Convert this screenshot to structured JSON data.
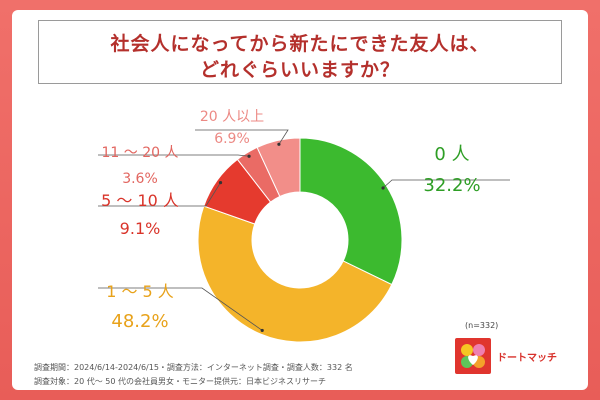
{
  "title": {
    "line1": "社会人になってから新たにできた友人は、",
    "line2": "どれぐらいいますか？"
  },
  "chart_data": {
    "type": "pie",
    "donut": true,
    "slices": [
      {
        "label": "0 人",
        "pct_label": "32.2%",
        "value": 32.2,
        "color": "#3cba2f",
        "label_color": "#2e9e25"
      },
      {
        "label": "1 ～ 5 人",
        "pct_label": "48.2%",
        "value": 48.2,
        "color": "#f4b42a",
        "label_color": "#e8a21a"
      },
      {
        "label": "5 ～ 10 人",
        "pct_label": "9.1%",
        "value": 9.1,
        "color": "#e53a2e",
        "label_color": "#d9342a"
      },
      {
        "label": "11 ～ 20 人",
        "pct_label": "3.6%",
        "value": 3.6,
        "color": "#ea6b65",
        "label_color": "#e26660"
      },
      {
        "label": "20 人以上",
        "pct_label": "6.9%",
        "value": 6.9,
        "color": "#f28e89",
        "label_color": "#ec8984"
      }
    ]
  },
  "sample_size": "(n=332)",
  "footnotes": {
    "line1": "調査期間：2024/6/14-2024/6/15・調査方法：インターネット調査・調査人数：332 名",
    "line2": "調査対象：20 代～ 50 代の会社員男女・モニター提供元：日本ビジネスリサーチ"
  },
  "brand": {
    "logo_icon": "heart-logo-icon",
    "name": "ドートマッチ"
  }
}
